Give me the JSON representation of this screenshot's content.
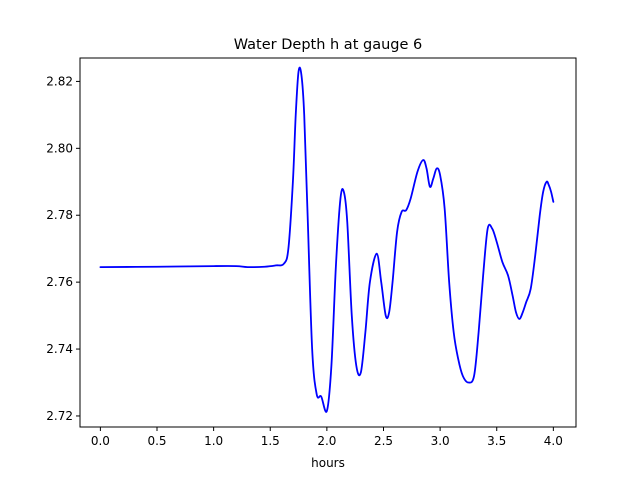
{
  "chart_data": {
    "type": "line",
    "title": "Water Depth h at gauge 6",
    "xlabel": "hours",
    "ylabel": "",
    "xlim": [
      -0.18,
      4.2
    ],
    "ylim": [
      2.7167,
      2.827
    ],
    "xticks": [
      0.0,
      0.5,
      1.0,
      1.5,
      2.0,
      2.5,
      3.0,
      3.5,
      4.0
    ],
    "xtick_labels": [
      "0.0",
      "0.5",
      "1.0",
      "1.5",
      "2.0",
      "2.5",
      "3.0",
      "3.5",
      "4.0"
    ],
    "yticks": [
      2.72,
      2.74,
      2.76,
      2.78,
      2.8,
      2.82
    ],
    "ytick_labels": [
      "2.72",
      "2.74",
      "2.76",
      "2.78",
      "2.80",
      "2.82"
    ],
    "grid": false,
    "series": [
      {
        "color": "#0000ff",
        "x": [
          0.0,
          0.5,
          1.0,
          1.2,
          1.3,
          1.45,
          1.55,
          1.62,
          1.66,
          1.7,
          1.725,
          1.75,
          1.775,
          1.8,
          1.83,
          1.87,
          1.91,
          1.95,
          2.0,
          2.04,
          2.08,
          2.12,
          2.15,
          2.18,
          2.22,
          2.26,
          2.3,
          2.34,
          2.38,
          2.44,
          2.48,
          2.52,
          2.55,
          2.58,
          2.62,
          2.66,
          2.7,
          2.74,
          2.8,
          2.85,
          2.88,
          2.91,
          2.94,
          2.97,
          3.0,
          3.04,
          3.08,
          3.12,
          3.16,
          3.2,
          3.25,
          3.3,
          3.34,
          3.38,
          3.42,
          3.46,
          3.5,
          3.55,
          3.6,
          3.64,
          3.67,
          3.7,
          3.73,
          3.76,
          3.8,
          3.84,
          3.88,
          3.91,
          3.94,
          3.96,
          3.98,
          4.0
        ],
        "y": [
          2.7645,
          2.7646,
          2.7648,
          2.7648,
          2.7645,
          2.7646,
          2.765,
          2.7655,
          2.77,
          2.79,
          2.81,
          2.823,
          2.822,
          2.81,
          2.78,
          2.74,
          2.7265,
          2.7258,
          2.7215,
          2.735,
          2.765,
          2.785,
          2.787,
          2.778,
          2.75,
          2.735,
          2.733,
          2.745,
          2.76,
          2.7685,
          2.76,
          2.75,
          2.751,
          2.76,
          2.775,
          2.781,
          2.7815,
          2.785,
          2.793,
          2.7965,
          2.794,
          2.7885,
          2.791,
          2.794,
          2.792,
          2.782,
          2.76,
          2.745,
          2.737,
          2.732,
          2.73,
          2.732,
          2.745,
          2.762,
          2.776,
          2.776,
          2.772,
          2.766,
          2.762,
          2.756,
          2.751,
          2.749,
          2.751,
          2.754,
          2.758,
          2.768,
          2.78,
          2.787,
          2.79,
          2.789,
          2.787,
          2.784
        ]
      }
    ]
  }
}
